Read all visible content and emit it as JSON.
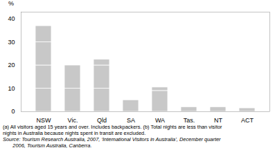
{
  "chart_data": {
    "type": "bar",
    "stacked": true,
    "categories": [
      "NSW",
      "Vic.",
      "Qld",
      "SA",
      "WA",
      "Tas.",
      "NT",
      "ACT"
    ],
    "series": [
      {
        "values": [
          10,
          10,
          10,
          5,
          9,
          2,
          2,
          1.5
        ]
      },
      {
        "values": [
          10,
          10,
          10,
          0,
          1.5,
          0,
          0,
          0
        ]
      },
      {
        "values": [
          10,
          0,
          2.5,
          0,
          0,
          0,
          0,
          0
        ]
      },
      {
        "values": [
          7,
          0,
          0,
          0,
          0,
          0,
          0,
          0
        ]
      }
    ],
    "color": "#c8c8c8",
    "ylabel": "%",
    "ylim": [
      0,
      43
    ],
    "yticks": [
      0,
      10,
      20,
      30,
      40
    ],
    "annotations": [
      "(a) All visitors aged 15 years and over. Includes backpackers. (b) Total nights are less than visitor",
      "nights in Australia because nights spent in transit are excluded.",
      "Source: Tourism Research Australia, 2007, ‘International Visitors in Australia’, December quarter",
      "       2006, Tourism Australia, Canberra."
    ]
  }
}
